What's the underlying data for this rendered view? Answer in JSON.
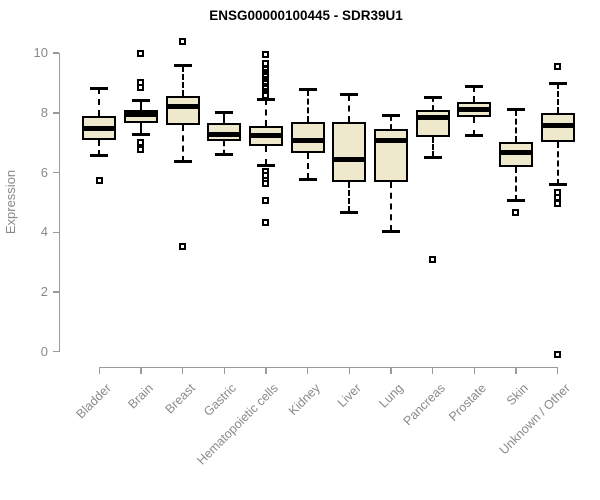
{
  "chart_data": {
    "type": "boxplot",
    "title": "ENSG00000100445 - SDR39U1",
    "ylabel": "Expression",
    "xlabel": "",
    "ylim": [
      0,
      10
    ],
    "yticks": [
      0,
      2,
      4,
      6,
      8,
      10
    ],
    "grid": false,
    "legend": "none",
    "box_fill_color": "#EEE8CD",
    "box_stroke_color": "#000000",
    "axis_color": "#9A9A9A",
    "tick_label_color": "#8A8A8A",
    "title_color": "#000000",
    "categories": [
      "Bladder",
      "Brain",
      "Breast",
      "Gastric",
      "Hematopoietic cells",
      "Kidney",
      "Liver",
      "Lung",
      "Pancreas",
      "Prostate",
      "Skin",
      "Unknown / Other"
    ],
    "boxes": [
      {
        "category": "Bladder",
        "whisker_low": 6.57,
        "q1": 7.1,
        "median": 7.47,
        "q3": 7.91,
        "whisker_high": 8.83,
        "outliers": [
          5.73
        ]
      },
      {
        "category": "Brain",
        "whisker_low": 7.28,
        "q1": 7.65,
        "median": 7.93,
        "q3": 8.1,
        "whisker_high": 8.43,
        "outliers": [
          9.98,
          9.02,
          8.84,
          7.01,
          6.79
        ]
      },
      {
        "category": "Breast",
        "whisker_low": 6.37,
        "q1": 7.58,
        "median": 8.23,
        "q3": 8.57,
        "whisker_high": 9.58,
        "outliers": [
          10.4,
          3.53
        ]
      },
      {
        "category": "Gastric",
        "whisker_low": 6.6,
        "q1": 7.06,
        "median": 7.29,
        "q3": 7.65,
        "whisker_high": 8.03,
        "outliers": []
      },
      {
        "category": "Hematopoietic cells",
        "whisker_low": 6.25,
        "q1": 6.88,
        "median": 7.23,
        "q3": 7.55,
        "whisker_high": 8.46,
        "outliers": [
          9.95,
          9.65,
          9.45,
          9.37,
          9.29,
          9.21,
          9.13,
          9.05,
          8.97,
          8.89,
          8.81,
          8.73,
          8.65,
          8.57,
          6.05,
          5.9,
          5.75,
          5.62,
          5.07,
          4.34
        ]
      },
      {
        "category": "Kidney",
        "whisker_low": 5.78,
        "q1": 6.66,
        "median": 7.08,
        "q3": 7.7,
        "whisker_high": 8.78,
        "outliers": []
      },
      {
        "category": "Liver",
        "whisker_low": 4.67,
        "q1": 5.67,
        "median": 6.43,
        "q3": 7.69,
        "whisker_high": 8.61,
        "outliers": []
      },
      {
        "category": "Lung",
        "whisker_low": 4.03,
        "q1": 5.7,
        "median": 7.06,
        "q3": 7.46,
        "whisker_high": 7.91,
        "outliers": []
      },
      {
        "category": "Pancreas",
        "whisker_low": 6.51,
        "q1": 7.19,
        "median": 7.84,
        "q3": 8.1,
        "whisker_high": 8.52,
        "outliers": [
          3.1
        ]
      },
      {
        "category": "Prostate",
        "whisker_low": 7.23,
        "q1": 7.86,
        "median": 8.1,
        "q3": 8.35,
        "whisker_high": 8.89,
        "outliers": []
      },
      {
        "category": "Skin",
        "whisker_low": 5.06,
        "q1": 6.19,
        "median": 6.66,
        "q3": 7.04,
        "whisker_high": 8.11,
        "outliers": [
          4.68
        ]
      },
      {
        "category": "Unknown / Other",
        "whisker_low": 5.59,
        "q1": 7.04,
        "median": 7.57,
        "q3": 8.0,
        "whisker_high": 9.0,
        "outliers": [
          9.56,
          5.33,
          5.15,
          4.95,
          -0.1
        ]
      }
    ]
  }
}
